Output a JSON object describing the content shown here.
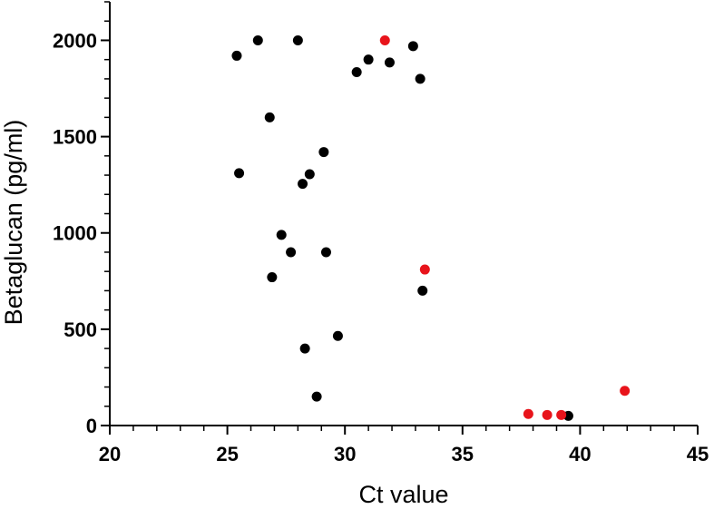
{
  "chart_data": {
    "type": "scatter",
    "xlabel": "Ct value",
    "ylabel": "Betaglucan (pg/ml)",
    "xlim": [
      20,
      45
    ],
    "ylim": [
      0,
      2200
    ],
    "xticks": [
      20,
      25,
      30,
      35,
      40,
      45
    ],
    "yticks": [
      0,
      500,
      1000,
      1500,
      2000
    ],
    "grid": false,
    "colors": {
      "black_series": "#000000",
      "red_series": "#e8141b",
      "axis": "#000000"
    },
    "series": [
      {
        "color": "#000000",
        "points": [
          {
            "x": 25.4,
            "y": 1920
          },
          {
            "x": 26.3,
            "y": 2000
          },
          {
            "x": 28.0,
            "y": 2000
          },
          {
            "x": 30.5,
            "y": 1835
          },
          {
            "x": 31.0,
            "y": 1900
          },
          {
            "x": 31.9,
            "y": 1885
          },
          {
            "x": 32.9,
            "y": 1970
          },
          {
            "x": 33.2,
            "y": 1800
          },
          {
            "x": 26.8,
            "y": 1600
          },
          {
            "x": 29.1,
            "y": 1420
          },
          {
            "x": 25.5,
            "y": 1310
          },
          {
            "x": 28.5,
            "y": 1305
          },
          {
            "x": 28.2,
            "y": 1255
          },
          {
            "x": 27.3,
            "y": 990
          },
          {
            "x": 27.7,
            "y": 900
          },
          {
            "x": 29.2,
            "y": 900
          },
          {
            "x": 26.9,
            "y": 770
          },
          {
            "x": 33.3,
            "y": 700
          },
          {
            "x": 29.7,
            "y": 465
          },
          {
            "x": 28.3,
            "y": 400
          },
          {
            "x": 28.8,
            "y": 150
          },
          {
            "x": 39.5,
            "y": 50
          }
        ]
      },
      {
        "color": "#e8141b",
        "points": [
          {
            "x": 31.7,
            "y": 2000
          },
          {
            "x": 33.4,
            "y": 810
          },
          {
            "x": 41.9,
            "y": 180
          },
          {
            "x": 37.8,
            "y": 60
          },
          {
            "x": 38.6,
            "y": 55
          },
          {
            "x": 39.2,
            "y": 55
          }
        ]
      }
    ]
  }
}
